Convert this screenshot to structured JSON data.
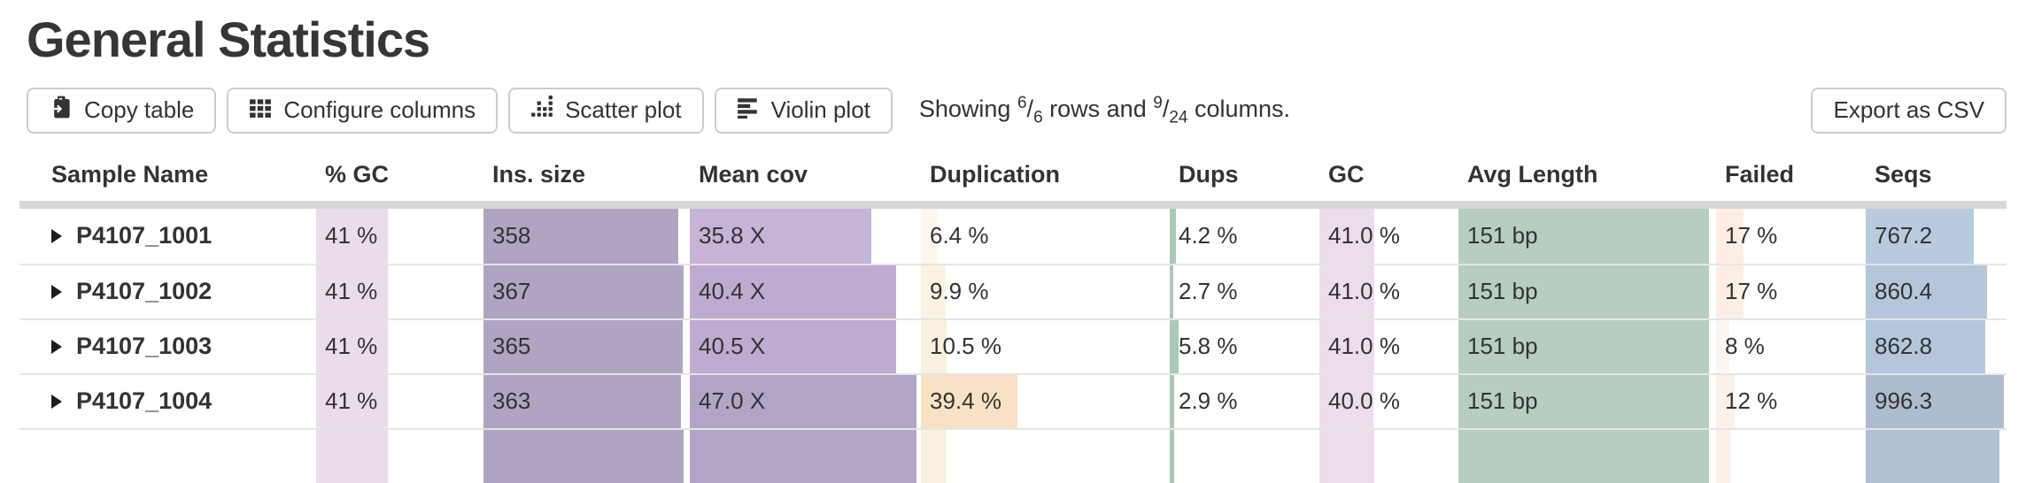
{
  "page": {
    "title": "General Statistics"
  },
  "toolbar": {
    "buttons": [
      {
        "label": "Copy table",
        "icon": "clipboard-icon"
      },
      {
        "label": "Configure columns",
        "icon": "grid-icon"
      },
      {
        "label": "Scatter plot",
        "icon": "scatter-icon"
      },
      {
        "label": "Violin plot",
        "icon": "violin-icon"
      }
    ],
    "showing": {
      "prefix": "Showing",
      "rows_shown": "6",
      "rows_total": "6",
      "middle": "rows and",
      "cols_shown": "9",
      "cols_total": "24",
      "suffix": "columns."
    },
    "export_label": "Export as CSV"
  },
  "table": {
    "columns": [
      "Sample Name",
      "% GC",
      "Ins. size",
      "Mean cov",
      "Duplication",
      "Dups",
      "GC",
      "Avg Length",
      "Failed",
      "Seqs"
    ],
    "rows": [
      {
        "name": "P4107_1001",
        "cells": [
          {
            "value": "41 %",
            "bar_pct": 44,
            "bar_color": "#eadcea"
          },
          {
            "value": "358",
            "bar_pct": 96.5,
            "bar_color": "#b1a4c2"
          },
          {
            "value": "35.8 X",
            "bar_pct": 80,
            "bar_color": "#c7b3d6"
          },
          {
            "value": "6.4 %",
            "bar_pct": 7,
            "bar_color": "#fdf8ee"
          },
          {
            "value": "4.2 %",
            "bar_pct": 4.2,
            "bar_color": "#a9c9b6"
          },
          {
            "value": "41.0 %",
            "bar_pct": 41,
            "bar_color": "#ecdcec"
          },
          {
            "value": "151 bp",
            "bar_pct": 99,
            "bar_color": "#b6cec2"
          },
          {
            "value": "17 %",
            "bar_pct": 19,
            "bar_color": "#fceee4"
          },
          {
            "value": "767.2",
            "bar_pct": 77,
            "bar_color": "#b8cade"
          }
        ]
      },
      {
        "name": "P4107_1002",
        "cells": [
          {
            "value": "41 %",
            "bar_pct": 44,
            "bar_color": "#eadcea"
          },
          {
            "value": "367",
            "bar_pct": 99,
            "bar_color": "#b1a4c2"
          },
          {
            "value": "40.4 X",
            "bar_pct": 91,
            "bar_color": "#c0abd0"
          },
          {
            "value": "9.9 %",
            "bar_pct": 10,
            "bar_color": "#fbf2e2"
          },
          {
            "value": "2.7 %",
            "bar_pct": 2.7,
            "bar_color": "#a9c9b6"
          },
          {
            "value": "41.0 %",
            "bar_pct": 41,
            "bar_color": "#ecdcec"
          },
          {
            "value": "151 bp",
            "bar_pct": 99,
            "bar_color": "#b6cec2"
          },
          {
            "value": "17 %",
            "bar_pct": 19,
            "bar_color": "#fceee4"
          },
          {
            "value": "860.4",
            "bar_pct": 86,
            "bar_color": "#b3c6db"
          }
        ]
      },
      {
        "name": "P4107_1003",
        "cells": [
          {
            "value": "41 %",
            "bar_pct": 44,
            "bar_color": "#eadcea"
          },
          {
            "value": "365",
            "bar_pct": 98.5,
            "bar_color": "#b1a4c2"
          },
          {
            "value": "40.5 X",
            "bar_pct": 91,
            "bar_color": "#c0abd0"
          },
          {
            "value": "10.5 %",
            "bar_pct": 10.5,
            "bar_color": "#faf0df"
          },
          {
            "value": "5.8 %",
            "bar_pct": 5.8,
            "bar_color": "#a9c9b6"
          },
          {
            "value": "41.0 %",
            "bar_pct": 41,
            "bar_color": "#ecdcec"
          },
          {
            "value": "151 bp",
            "bar_pct": 99,
            "bar_color": "#b6cec2"
          },
          {
            "value": "8 %",
            "bar_pct": 9,
            "bar_color": "#fdf5f0"
          },
          {
            "value": "862.8",
            "bar_pct": 85,
            "bar_color": "#b3c6db"
          }
        ]
      },
      {
        "name": "P4107_1004",
        "cells": [
          {
            "value": "41 %",
            "bar_pct": 44,
            "bar_color": "#eadcea"
          },
          {
            "value": "363",
            "bar_pct": 98,
            "bar_color": "#b1a4c2"
          },
          {
            "value": "47.0 X",
            "bar_pct": 100,
            "bar_color": "#b2a4c5"
          },
          {
            "value": "39.4 %",
            "bar_pct": 39.5,
            "bar_color": "#f8e2c3"
          },
          {
            "value": "2.9 %",
            "bar_pct": 2.9,
            "bar_color": "#a9c9b6"
          },
          {
            "value": "40.0 %",
            "bar_pct": 40,
            "bar_color": "#ecdcec"
          },
          {
            "value": "151 bp",
            "bar_pct": 99,
            "bar_color": "#b6cec2"
          },
          {
            "value": "12 %",
            "bar_pct": 13,
            "bar_color": "#fcf1ea"
          },
          {
            "value": "996.3",
            "bar_pct": 98,
            "bar_color": "#aebccf"
          }
        ]
      }
    ],
    "partial_row": {
      "cells": [
        {
          "bar_pct": 44,
          "bar_color": "#eadcea"
        },
        {
          "bar_pct": 99,
          "bar_color": "#b1a4c2"
        },
        {
          "bar_pct": 100,
          "bar_color": "#b2a4c5"
        },
        {
          "bar_pct": 10,
          "bar_color": "#faf0df"
        },
        {
          "bar_pct": 3,
          "bar_color": "#a9c9b6"
        },
        {
          "bar_pct": 41,
          "bar_color": "#ecdcec"
        },
        {
          "bar_pct": 99,
          "bar_color": "#b6cec2"
        },
        {
          "bar_pct": 10,
          "bar_color": "#fcf1ea"
        },
        {
          "bar_pct": 95,
          "bar_color": "#b0c0d3"
        }
      ]
    }
  }
}
